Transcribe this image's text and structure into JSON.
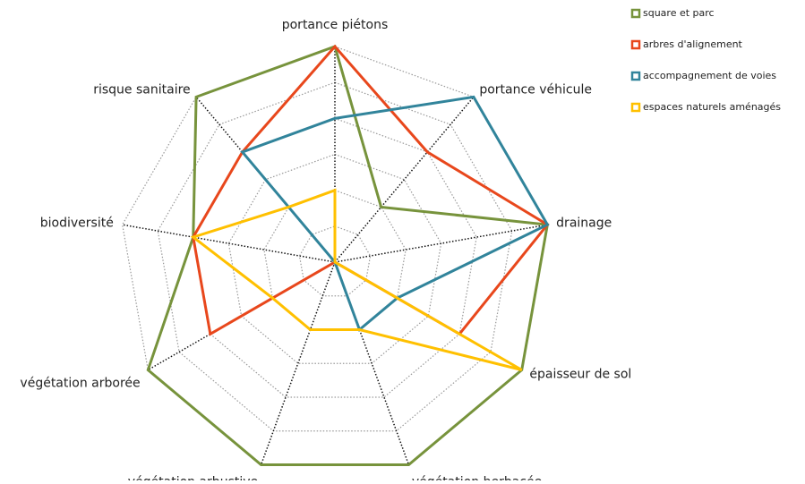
{
  "chart_data": {
    "type": "radar",
    "categories": [
      "portance piétons",
      "portance véhicule",
      "drainage",
      "épaisseur de sol",
      "végétation herbacée",
      "végétation arbustive",
      "végétation arborée",
      "biodiversité",
      "risque sanitaire"
    ],
    "rlim": [
      0,
      3
    ],
    "rticks": [
      0,
      0.5,
      1,
      1.5,
      2,
      2.5,
      3
    ],
    "grid": true,
    "legend": "top-right",
    "series": [
      {
        "name": "square et parc",
        "color": "#77933c",
        "values": [
          3,
          1,
          3,
          3,
          3,
          3,
          3,
          2,
          3
        ]
      },
      {
        "name": "arbres d'alignement",
        "color": "#e8471c",
        "values": [
          3,
          2,
          3,
          2,
          0,
          0,
          2,
          2,
          2
        ]
      },
      {
        "name": "accompagnement de voies",
        "color": "#31849b",
        "values": [
          2,
          3,
          3,
          1,
          1,
          0,
          0,
          0,
          2
        ]
      },
      {
        "name": "espaces naturels aménagés",
        "color": "#ffc000",
        "values": [
          1,
          0,
          0,
          3,
          1,
          1,
          1,
          2,
          1
        ]
      }
    ]
  }
}
